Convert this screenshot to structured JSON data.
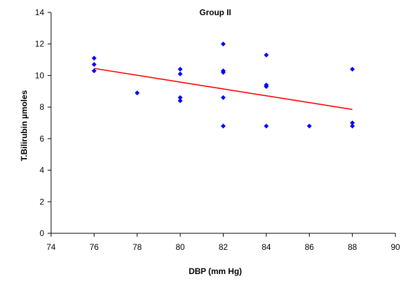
{
  "chart_data": {
    "type": "scatter",
    "title": "Group II",
    "xlabel": "DBP (mm Hg)",
    "ylabel": "T.Bilirubin µmoles",
    "xlim": [
      74,
      90
    ],
    "ylim": [
      0,
      14
    ],
    "x_ticks": [
      74,
      76,
      78,
      80,
      82,
      84,
      86,
      88,
      90
    ],
    "y_ticks": [
      0,
      2,
      4,
      6,
      8,
      10,
      12,
      14
    ],
    "grid": false,
    "legend": "none",
    "marker_shape": "diamond",
    "colors": {
      "points": "#0000ff",
      "trendline": "#ff0000",
      "axes": "#000000"
    },
    "points": [
      {
        "x": 76,
        "y": 11.1
      },
      {
        "x": 76,
        "y": 10.7
      },
      {
        "x": 76,
        "y": 10.3
      },
      {
        "x": 78,
        "y": 8.9
      },
      {
        "x": 80,
        "y": 10.4
      },
      {
        "x": 80,
        "y": 10.1
      },
      {
        "x": 80,
        "y": 8.6
      },
      {
        "x": 80,
        "y": 8.4
      },
      {
        "x": 82,
        "y": 12.0
      },
      {
        "x": 82,
        "y": 10.3
      },
      {
        "x": 82,
        "y": 10.2
      },
      {
        "x": 82,
        "y": 8.6
      },
      {
        "x": 82,
        "y": 6.8
      },
      {
        "x": 84,
        "y": 11.3
      },
      {
        "x": 84,
        "y": 9.4
      },
      {
        "x": 84,
        "y": 9.3
      },
      {
        "x": 84,
        "y": 6.8
      },
      {
        "x": 86,
        "y": 6.8
      },
      {
        "x": 88,
        "y": 10.4
      },
      {
        "x": 88,
        "y": 7.0
      },
      {
        "x": 88,
        "y": 6.8
      }
    ],
    "trendline": {
      "type": "linear",
      "from": {
        "x": 76,
        "y": 10.45
      },
      "to": {
        "x": 88,
        "y": 7.85
      }
    }
  }
}
